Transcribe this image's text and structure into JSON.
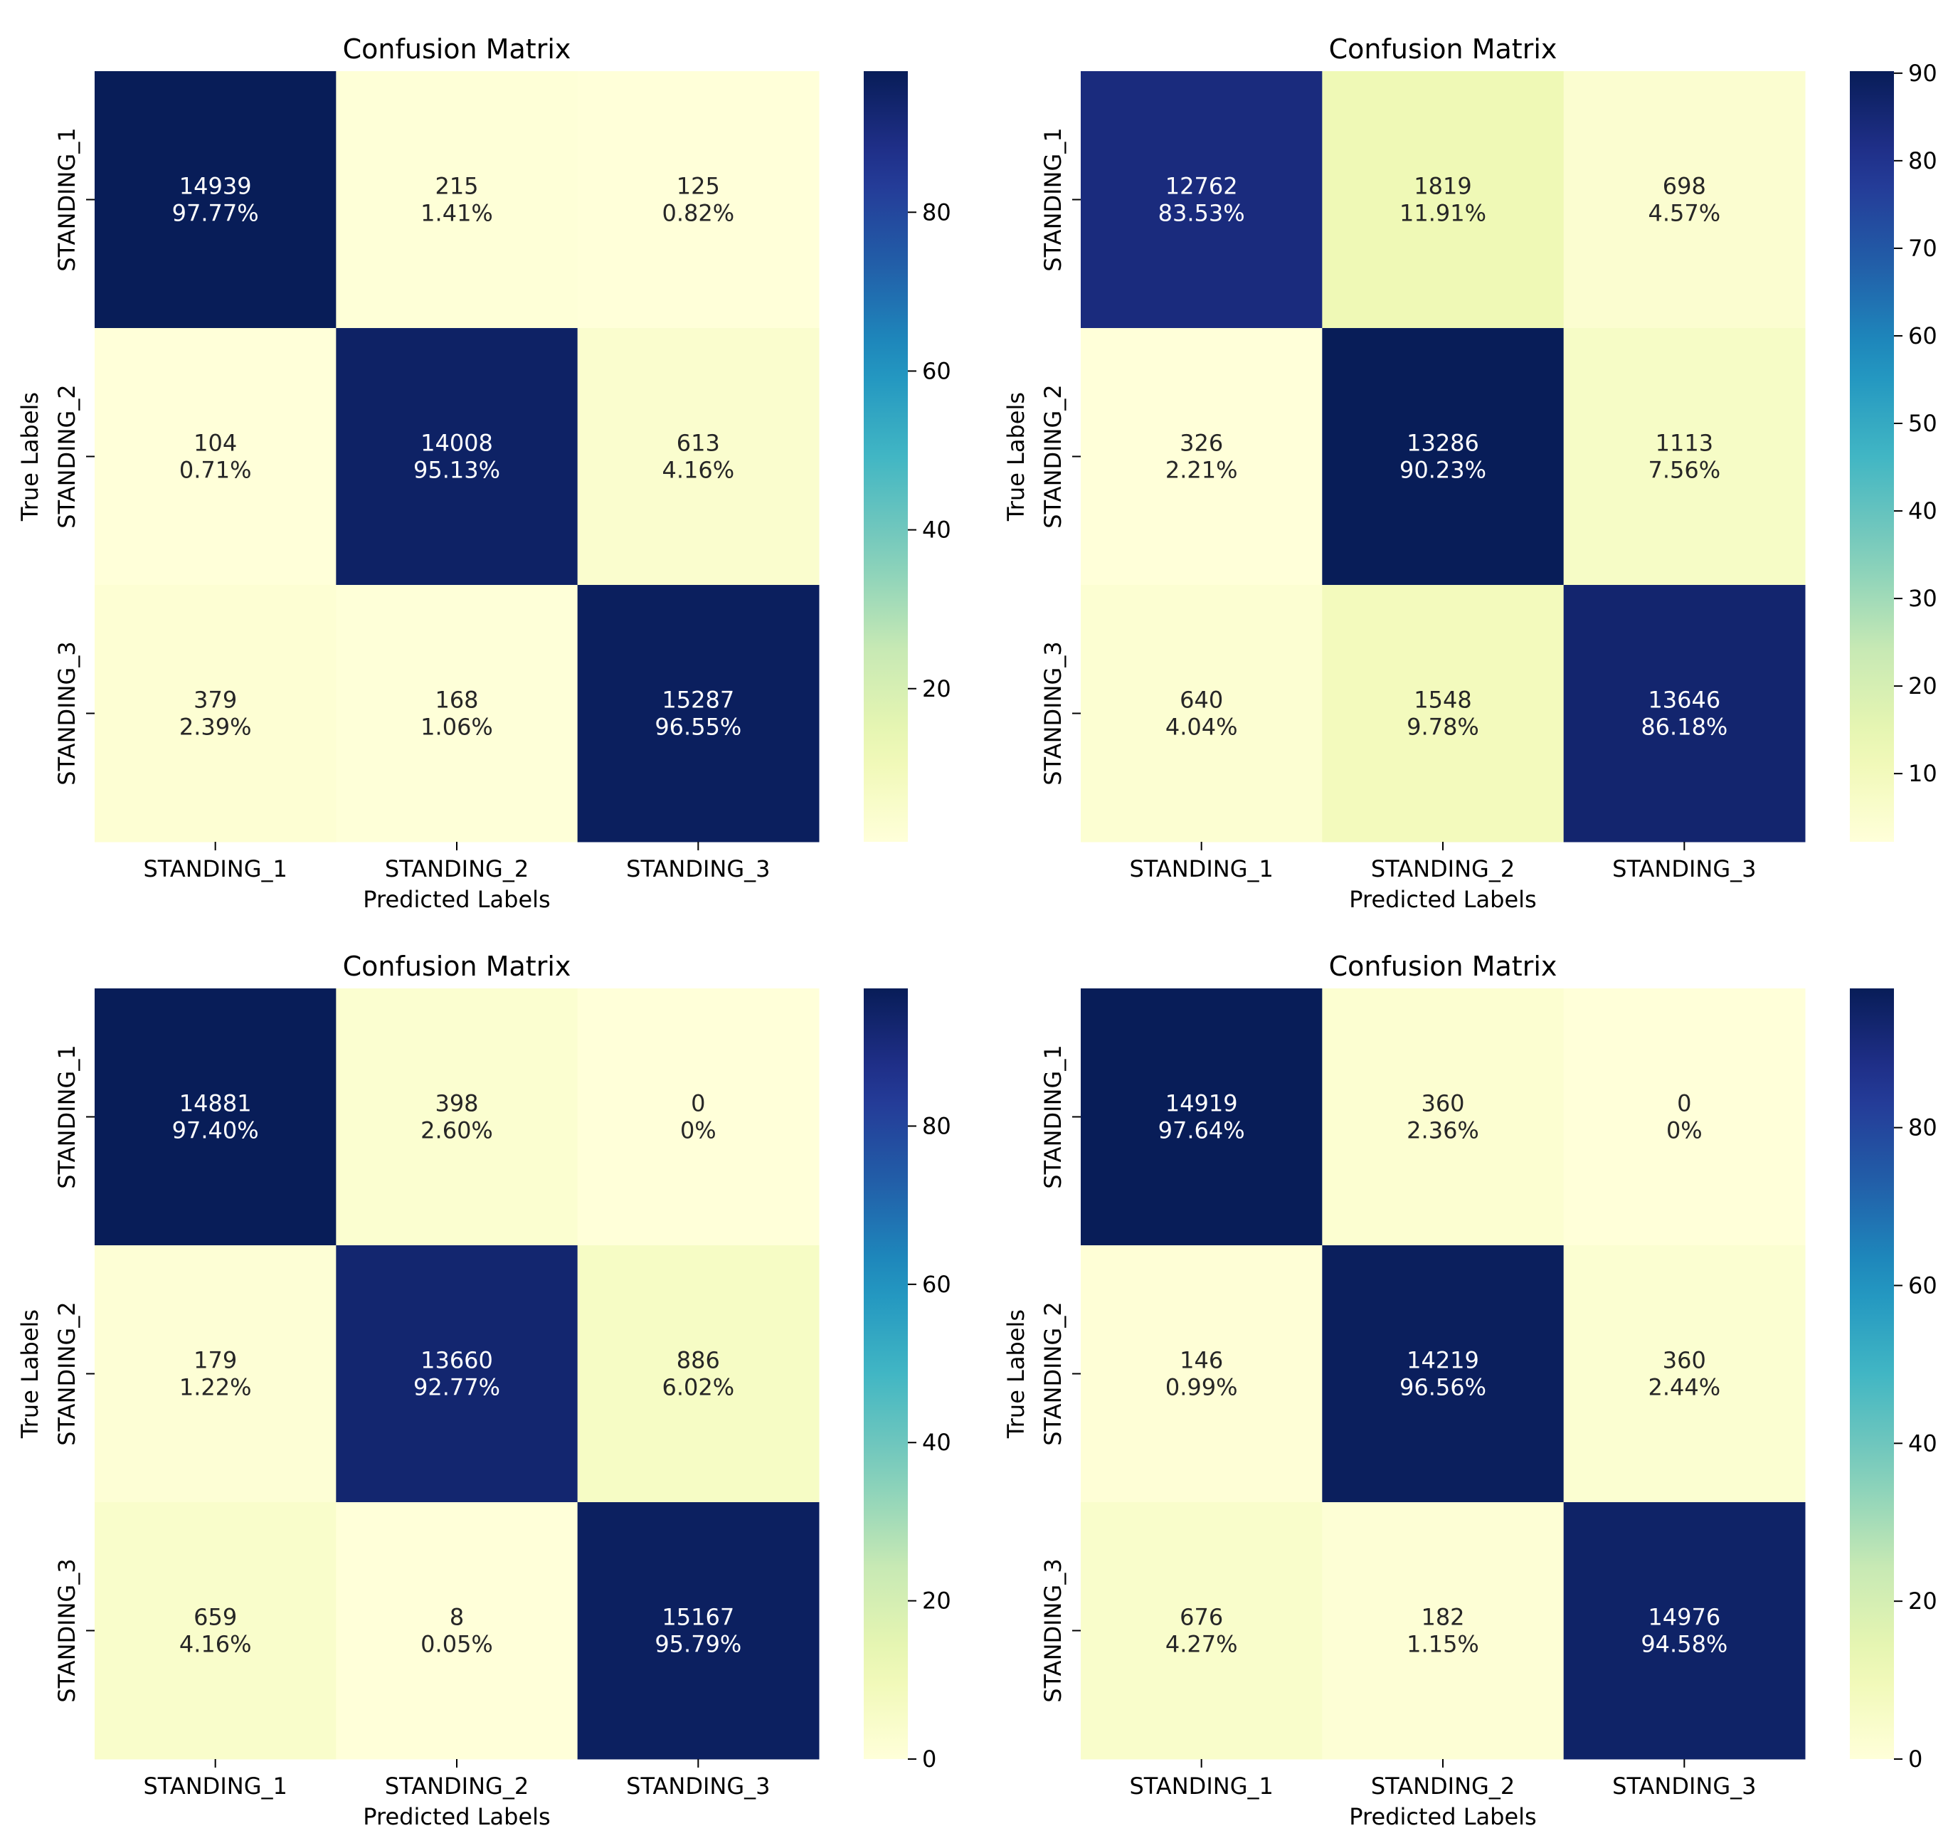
{
  "chart_data": [
    {
      "type": "heatmap",
      "title": "Confusion Matrix",
      "xlabel": "Predicted Labels",
      "ylabel": "True Labels",
      "x_categories": [
        "STANDING_1",
        "STANDING_2",
        "STANDING_3"
      ],
      "y_categories": [
        "STANDING_1",
        "STANDING_2",
        "STANDING_3"
      ],
      "counts": [
        [
          14939,
          215,
          125
        ],
        [
          104,
          14008,
          613
        ],
        [
          379,
          168,
          15287
        ]
      ],
      "percents": [
        [
          "97.77%",
          "1.41%",
          "0.82%"
        ],
        [
          "0.71%",
          "95.13%",
          "4.16%"
        ],
        [
          "2.39%",
          "1.06%",
          "96.55%"
        ]
      ],
      "colorbar": {
        "min": 0.71,
        "max": 97.77,
        "ticks": [
          "20",
          "40",
          "60",
          "80"
        ],
        "tick_values": [
          20,
          40,
          60,
          80
        ]
      }
    },
    {
      "type": "heatmap",
      "title": "Confusion Matrix",
      "xlabel": "Predicted Labels",
      "ylabel": "True Labels",
      "x_categories": [
        "STANDING_1",
        "STANDING_2",
        "STANDING_3"
      ],
      "y_categories": [
        "STANDING_1",
        "STANDING_2",
        "STANDING_3"
      ],
      "counts": [
        [
          12762,
          1819,
          698
        ],
        [
          326,
          13286,
          1113
        ],
        [
          640,
          1548,
          13646
        ]
      ],
      "percents": [
        [
          "83.53%",
          "11.91%",
          "4.57%"
        ],
        [
          "2.21%",
          "90.23%",
          "7.56%"
        ],
        [
          "4.04%",
          "9.78%",
          "86.18%"
        ]
      ],
      "colorbar": {
        "min": 2.21,
        "max": 90.23,
        "ticks": [
          "10",
          "20",
          "30",
          "40",
          "50",
          "60",
          "70",
          "80",
          "90"
        ],
        "tick_values": [
          10,
          20,
          30,
          40,
          50,
          60,
          70,
          80,
          90
        ]
      }
    },
    {
      "type": "heatmap",
      "title": "Confusion Matrix",
      "xlabel": "Predicted Labels",
      "ylabel": "True Labels",
      "x_categories": [
        "STANDING_1",
        "STANDING_2",
        "STANDING_3"
      ],
      "y_categories": [
        "STANDING_1",
        "STANDING_2",
        "STANDING_3"
      ],
      "counts": [
        [
          14881,
          398,
          0
        ],
        [
          179,
          13660,
          886
        ],
        [
          659,
          8,
          15167
        ]
      ],
      "percents": [
        [
          "97.40%",
          "2.60%",
          "0%"
        ],
        [
          "1.22%",
          "92.77%",
          "6.02%"
        ],
        [
          "4.16%",
          "0.05%",
          "95.79%"
        ]
      ],
      "colorbar": {
        "min": 0,
        "max": 97.4,
        "ticks": [
          "0",
          "20",
          "40",
          "60",
          "80"
        ],
        "tick_values": [
          0,
          20,
          40,
          60,
          80
        ]
      }
    },
    {
      "type": "heatmap",
      "title": "Confusion Matrix",
      "xlabel": "Predicted Labels",
      "ylabel": "True Labels",
      "x_categories": [
        "STANDING_1",
        "STANDING_2",
        "STANDING_3"
      ],
      "y_categories": [
        "STANDING_1",
        "STANDING_2",
        "STANDING_3"
      ],
      "counts": [
        [
          14919,
          360,
          0
        ],
        [
          146,
          14219,
          360
        ],
        [
          676,
          182,
          14976
        ]
      ],
      "percents": [
        [
          "97.64%",
          "2.36%",
          "0%"
        ],
        [
          "0.99%",
          "96.56%",
          "2.44%"
        ],
        [
          "4.27%",
          "1.15%",
          "94.58%"
        ]
      ],
      "colorbar": {
        "min": 0,
        "max": 97.64,
        "ticks": [
          "0",
          "20",
          "40",
          "60",
          "80"
        ],
        "tick_values": [
          0,
          20,
          40,
          60,
          80
        ]
      }
    }
  ]
}
